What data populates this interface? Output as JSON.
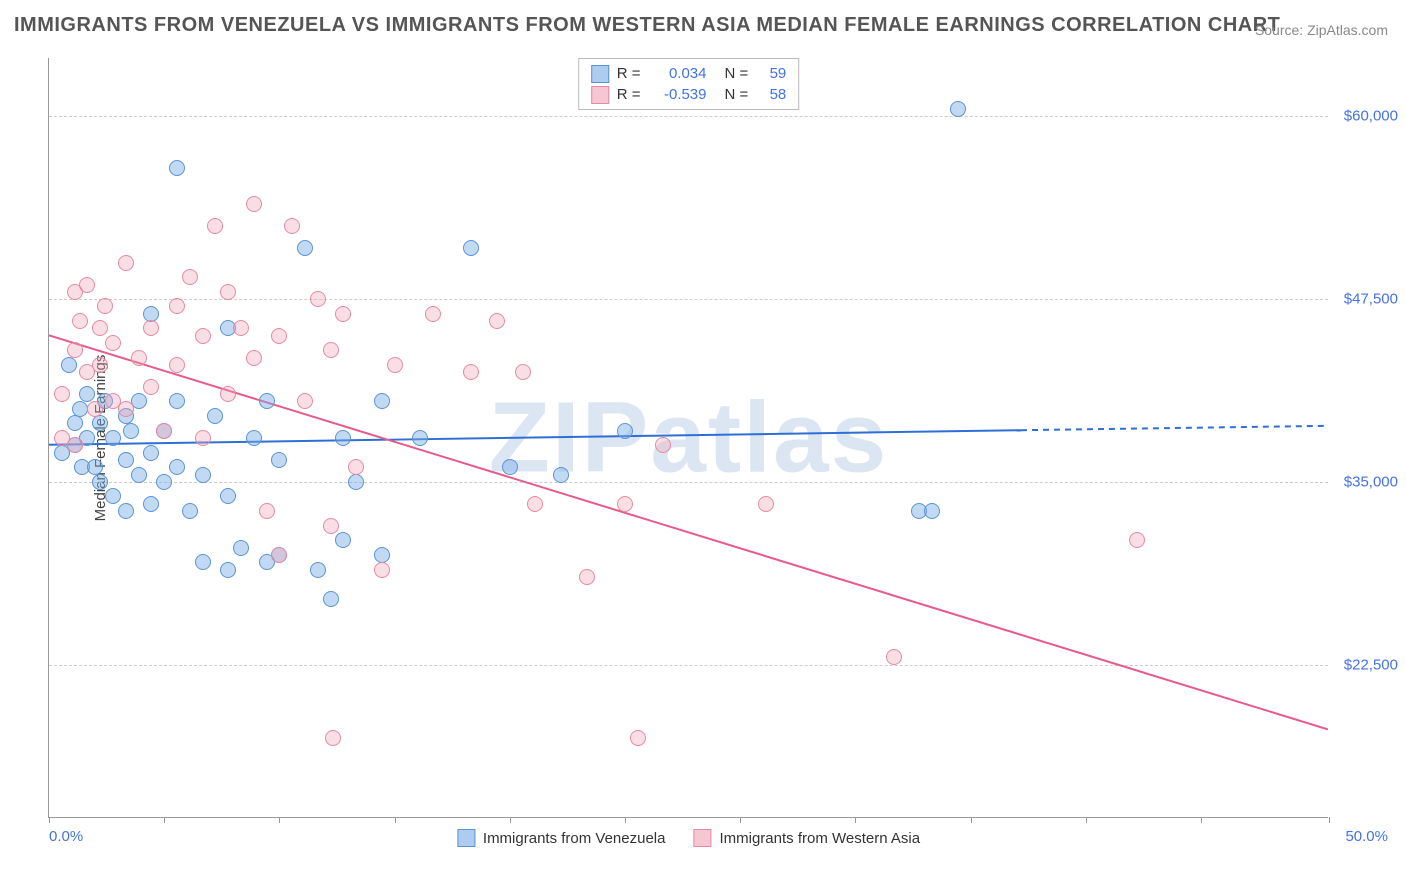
{
  "title": "IMMIGRANTS FROM VENEZUELA VS IMMIGRANTS FROM WESTERN ASIA MEDIAN FEMALE EARNINGS CORRELATION CHART",
  "source": "Source: ZipAtlas.com",
  "watermark": "ZIPatlas",
  "yaxis_title": "Median Female Earnings",
  "chart": {
    "type": "scatter",
    "xlim": [
      0,
      50
    ],
    "ylim": [
      12000,
      64000
    ],
    "x_tick_positions": [
      0,
      4.5,
      9,
      13.5,
      18,
      22.5,
      27,
      31.5,
      36,
      40.5,
      45,
      50
    ],
    "y_gridlines": [
      22500,
      35000,
      47500,
      60000
    ],
    "y_tick_labels": [
      "$22,500",
      "$35,000",
      "$47,500",
      "$60,000"
    ],
    "x_min_label": "0.0%",
    "x_max_label": "50.0%",
    "background_color": "#ffffff",
    "grid_color": "#cccccc",
    "marker_size": 16,
    "marker_opacity": 0.4,
    "series": [
      {
        "name": "Immigrants from Venezuela",
        "color_fill": "#78aae6",
        "color_border": "#5b94d6",
        "r": "0.034",
        "n": "59",
        "trend": {
          "x1": 0,
          "y1": 37500,
          "x2": 38,
          "y2": 38500,
          "x2_ext": 50,
          "y2_ext": 38800,
          "color": "#2e6fd6",
          "width": 2,
          "dash_after_x": 38
        },
        "points": [
          [
            0.5,
            37000
          ],
          [
            0.8,
            43000
          ],
          [
            1.0,
            39000
          ],
          [
            1.0,
            37500
          ],
          [
            1.2,
            40000
          ],
          [
            1.3,
            36000
          ],
          [
            1.5,
            41000
          ],
          [
            1.5,
            38000
          ],
          [
            1.8,
            36000
          ],
          [
            2.0,
            39000
          ],
          [
            2.0,
            35000
          ],
          [
            2.2,
            40500
          ],
          [
            2.5,
            38000
          ],
          [
            2.5,
            34000
          ],
          [
            3.0,
            39500
          ],
          [
            3.0,
            36500
          ],
          [
            3.0,
            33000
          ],
          [
            3.2,
            38500
          ],
          [
            3.5,
            35500
          ],
          [
            3.5,
            40500
          ],
          [
            4.0,
            37000
          ],
          [
            4.0,
            33500
          ],
          [
            4.0,
            46500
          ],
          [
            4.5,
            38500
          ],
          [
            4.5,
            35000
          ],
          [
            5.0,
            40500
          ],
          [
            5.0,
            36000
          ],
          [
            5.0,
            56500
          ],
          [
            5.5,
            33000
          ],
          [
            6.0,
            35500
          ],
          [
            6.0,
            29500
          ],
          [
            6.5,
            39500
          ],
          [
            7.0,
            45500
          ],
          [
            7.0,
            34000
          ],
          [
            7.0,
            29000
          ],
          [
            7.5,
            30500
          ],
          [
            8.0,
            38000
          ],
          [
            8.5,
            29500
          ],
          [
            8.5,
            40500
          ],
          [
            9.0,
            30000
          ],
          [
            9.0,
            36500
          ],
          [
            10.0,
            51000
          ],
          [
            10.5,
            29000
          ],
          [
            11.0,
            27000
          ],
          [
            11.5,
            31000
          ],
          [
            11.5,
            38000
          ],
          [
            12.0,
            35000
          ],
          [
            13.0,
            40500
          ],
          [
            13.0,
            30000
          ],
          [
            14.5,
            38000
          ],
          [
            16.5,
            51000
          ],
          [
            18.0,
            36000
          ],
          [
            20.0,
            35500
          ],
          [
            22.5,
            38500
          ],
          [
            34.0,
            33000
          ],
          [
            34.5,
            33000
          ],
          [
            35.5,
            60500
          ]
        ]
      },
      {
        "name": "Immigrants from Western Asia",
        "color_fill": "#f0a0b4",
        "color_border": "#e68aa3",
        "r": "-0.539",
        "n": "58",
        "trend": {
          "x1": 0,
          "y1": 45000,
          "x2": 50,
          "y2": 18000,
          "color": "#e85a8a",
          "width": 2
        },
        "points": [
          [
            0.5,
            41000
          ],
          [
            0.5,
            38000
          ],
          [
            1.0,
            48000
          ],
          [
            1.0,
            44000
          ],
          [
            1.0,
            37500
          ],
          [
            1.2,
            46000
          ],
          [
            1.5,
            48500
          ],
          [
            1.5,
            42500
          ],
          [
            1.8,
            40000
          ],
          [
            2.0,
            45500
          ],
          [
            2.0,
            43000
          ],
          [
            2.2,
            47000
          ],
          [
            2.5,
            40500
          ],
          [
            2.5,
            44500
          ],
          [
            3.0,
            50000
          ],
          [
            3.0,
            40000
          ],
          [
            3.5,
            43500
          ],
          [
            4.0,
            45500
          ],
          [
            4.0,
            41500
          ],
          [
            4.5,
            38500
          ],
          [
            5.0,
            47000
          ],
          [
            5.0,
            43000
          ],
          [
            5.5,
            49000
          ],
          [
            6.0,
            45000
          ],
          [
            6.0,
            38000
          ],
          [
            6.5,
            52500
          ],
          [
            7.0,
            48000
          ],
          [
            7.0,
            41000
          ],
          [
            7.5,
            45500
          ],
          [
            8.0,
            54000
          ],
          [
            8.0,
            43500
          ],
          [
            8.5,
            33000
          ],
          [
            9.0,
            45000
          ],
          [
            9.0,
            30000
          ],
          [
            9.5,
            52500
          ],
          [
            10.0,
            40500
          ],
          [
            10.5,
            47500
          ],
          [
            11.0,
            32000
          ],
          [
            11.0,
            44000
          ],
          [
            11.1,
            17500
          ],
          [
            11.5,
            46500
          ],
          [
            12.0,
            36000
          ],
          [
            13.0,
            29000
          ],
          [
            13.5,
            43000
          ],
          [
            15.0,
            46500
          ],
          [
            16.5,
            42500
          ],
          [
            17.5,
            46000
          ],
          [
            18.5,
            42500
          ],
          [
            19.0,
            33500
          ],
          [
            21.0,
            28500
          ],
          [
            22.5,
            33500
          ],
          [
            23.0,
            17500
          ],
          [
            24.0,
            37500
          ],
          [
            28.0,
            33500
          ],
          [
            33.0,
            23000
          ],
          [
            42.5,
            31000
          ]
        ]
      }
    ]
  },
  "legend_top": {
    "r_label": "R =",
    "n_label": "N ="
  }
}
